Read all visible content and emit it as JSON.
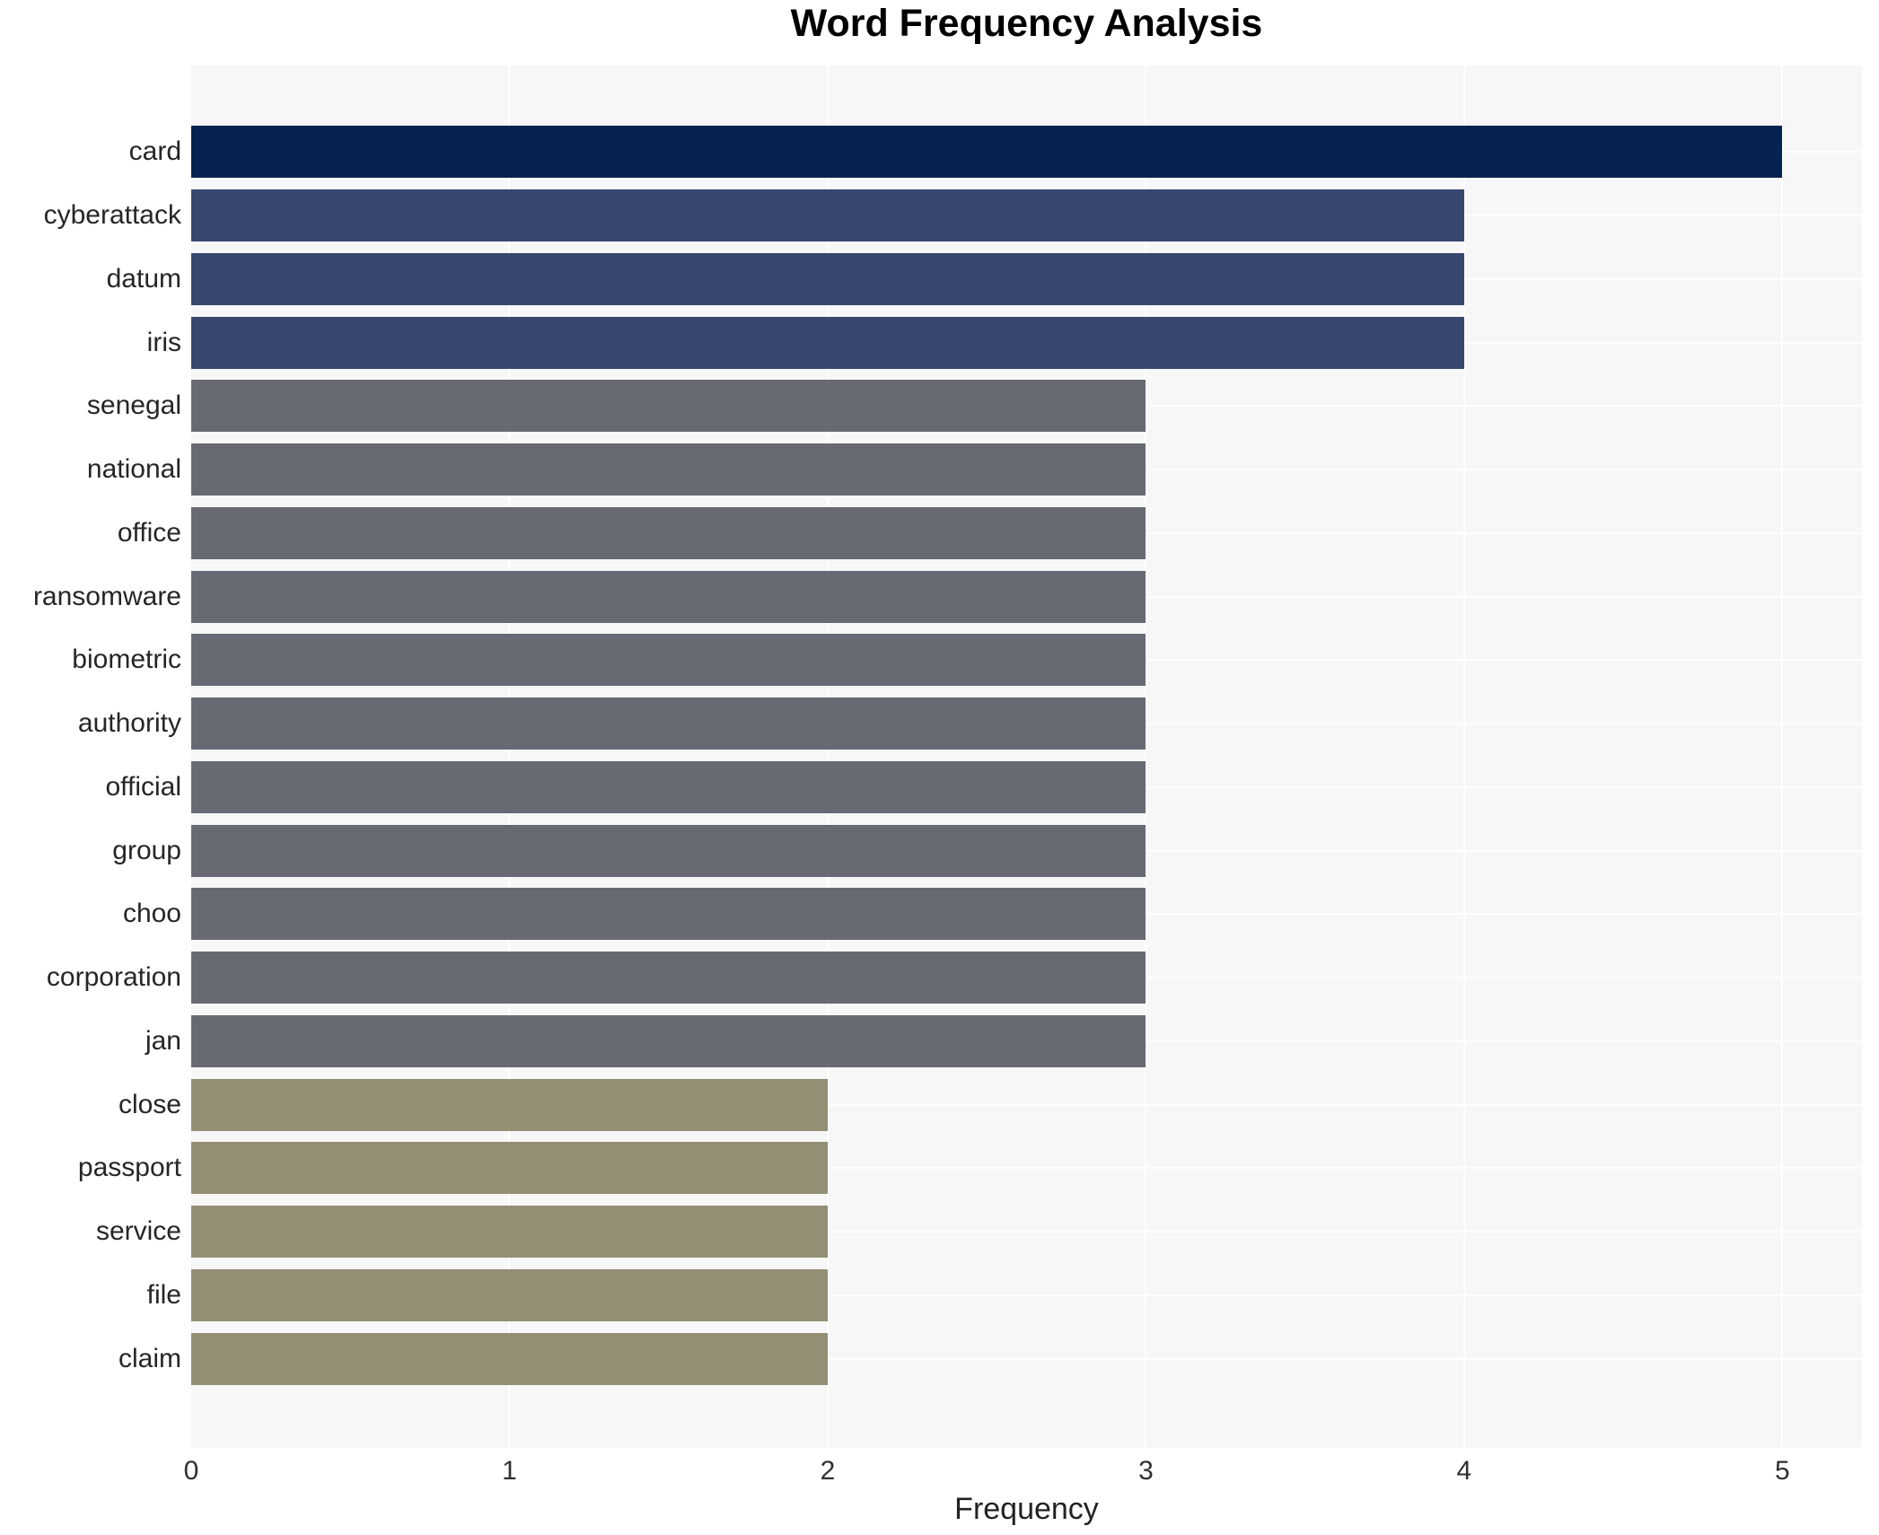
{
  "title": "Word Frequency Analysis",
  "chart_data": {
    "type": "bar",
    "orientation": "horizontal",
    "title": "Word Frequency Analysis",
    "xlabel": "Frequency",
    "ylabel": "",
    "xlim": [
      0,
      5.25
    ],
    "x_ticks": [
      0,
      1,
      2,
      3,
      4,
      5
    ],
    "grid": true,
    "legend": "none",
    "categories": [
      "card",
      "cyberattack",
      "datum",
      "iris",
      "senegal",
      "national",
      "office",
      "ransomware",
      "biometric",
      "authority",
      "official",
      "group",
      "choo",
      "corporation",
      "jan",
      "close",
      "passport",
      "service",
      "file",
      "claim"
    ],
    "values": [
      5,
      4,
      4,
      4,
      3,
      3,
      3,
      3,
      3,
      3,
      3,
      3,
      3,
      3,
      3,
      2,
      2,
      2,
      2,
      2
    ]
  },
  "colors": {
    "value_colors": {
      "5": "#052250",
      "4": "#37476f",
      "3": "#676a72",
      "2": "#948e74"
    },
    "page_bg": "#ffffff",
    "plot_bg": "#f7f7f8",
    "gridline": "#ffffff",
    "title_text": "#000000",
    "label_text": "#262626"
  }
}
